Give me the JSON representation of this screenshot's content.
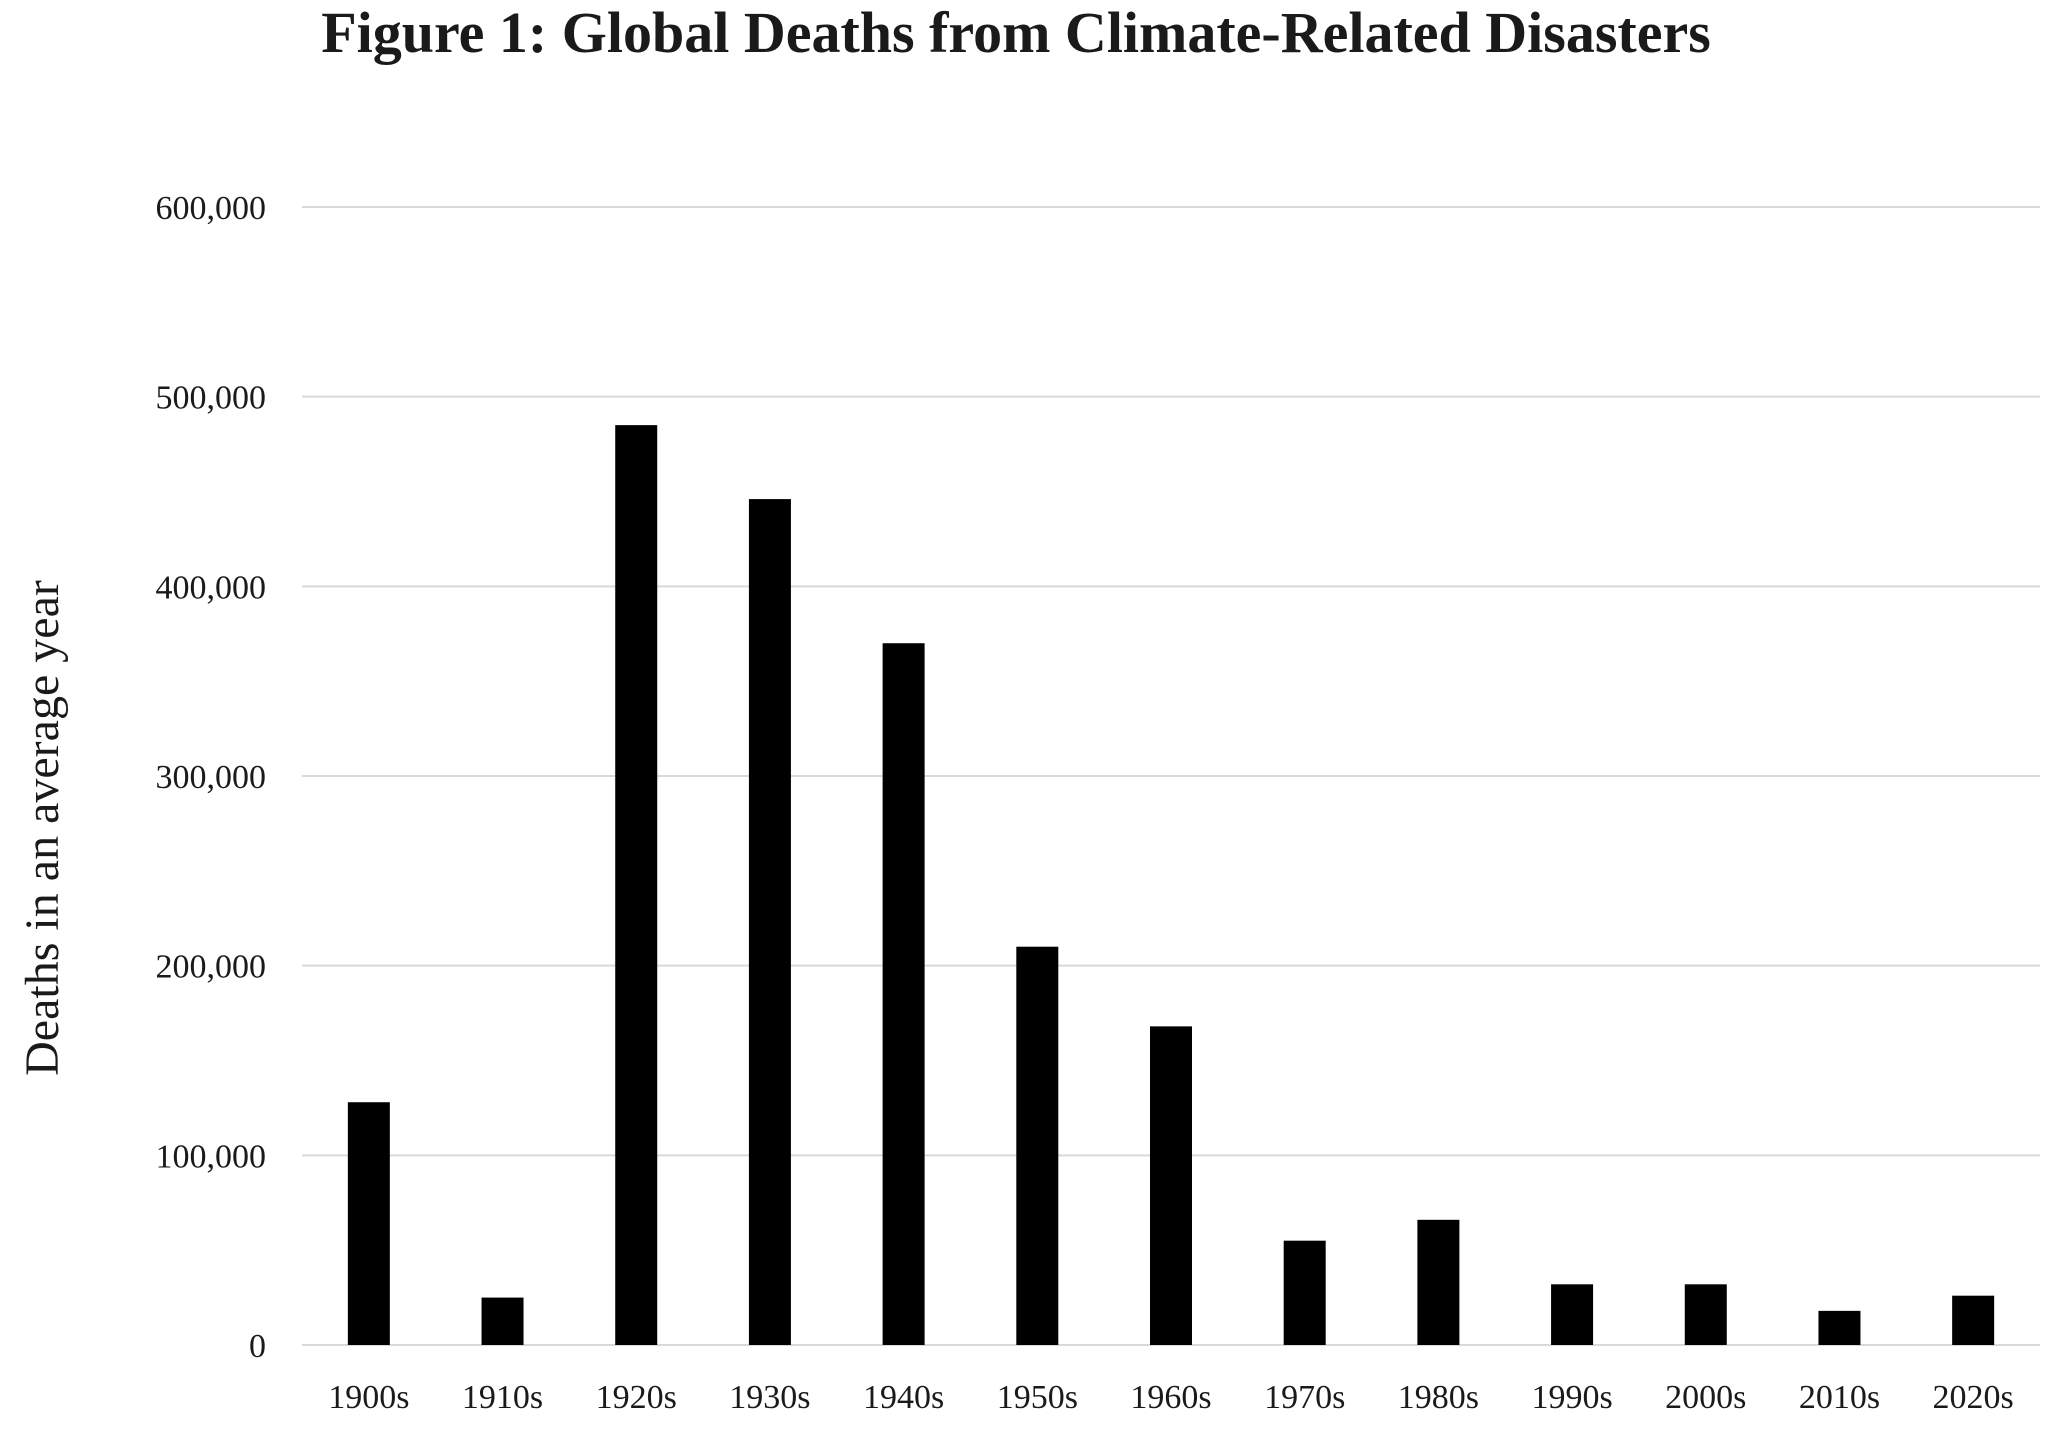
{
  "chart_data": {
    "type": "bar",
    "title": "Figure 1: Global Deaths from Climate-Related Disasters",
    "xlabel": "",
    "ylabel": "Deaths in an average year",
    "categories": [
      "1900s",
      "1910s",
      "1920s",
      "1930s",
      "1940s",
      "1950s",
      "1960s",
      "1970s",
      "1980s",
      "1990s",
      "2000s",
      "2010s",
      "2020s"
    ],
    "values": [
      128000,
      25000,
      485000,
      446000,
      370000,
      210000,
      168000,
      55000,
      66000,
      32000,
      32000,
      18000,
      26000
    ],
    "ylim": [
      0,
      600000
    ],
    "yticks": [
      0,
      100000,
      200000,
      300000,
      400000,
      500000,
      600000
    ],
    "ytick_labels": [
      "0",
      "100,000",
      "200,000",
      "300,000",
      "400,000",
      "500,000",
      "600,000"
    ],
    "grid": true,
    "legend": "none",
    "bar_color": "#000000",
    "grid_color": "#d9d9d9"
  }
}
